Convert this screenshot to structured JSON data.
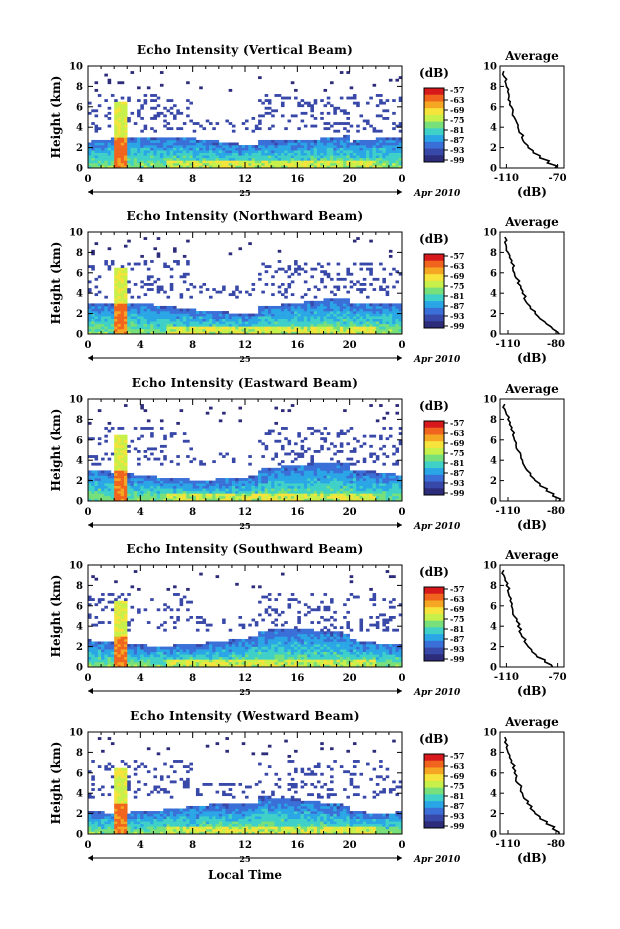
{
  "common": {
    "x_ticks": [
      "0",
      "4",
      "8",
      "12",
      "16",
      "20",
      "0"
    ],
    "y_ticks": [
      "0",
      "2",
      "4",
      "6",
      "8",
      "10"
    ],
    "ylabel": "Height (km)",
    "date_day": "25",
    "date_month_year": "Apr 2010",
    "colorbar_label": "(dB)",
    "colorbar_ticks": [
      "-57",
      "-63",
      "-69",
      "-75",
      "-81",
      "-87",
      "-93",
      "-99"
    ],
    "colorbar_colors": [
      "#d7191c",
      "#f0641e",
      "#f5a623",
      "#f6e33b",
      "#c8f04a",
      "#78e07a",
      "#3fd0c8",
      "#2aa6e6",
      "#3a6fd8",
      "#3848a8",
      "#2c2c7a"
    ],
    "avg_title": "Average",
    "avg_xlabel": "(dB)",
    "xlabel": "Local Time"
  },
  "chart_data": [
    {
      "type": "heatmap",
      "title": "Echo Intensity (Vertical Beam)",
      "x_range": [
        0,
        24
      ],
      "y_range": [
        0,
        10
      ],
      "avg_profile": {
        "ticks": [
          "-110",
          "-70"
        ],
        "xlim": [
          -115,
          -65
        ],
        "height": [
          0,
          0.5,
          1,
          1.5,
          2,
          2.5,
          3,
          3.5,
          4,
          4.5,
          5,
          5.5,
          6,
          6.5,
          7,
          7.5,
          8,
          8.5,
          9,
          9.5
        ],
        "db": [
          -72,
          -78,
          -84,
          -89,
          -93,
          -96,
          -98,
          -100,
          -101,
          -102,
          -104,
          -105,
          -106,
          -107,
          -108,
          -109,
          -110,
          -111,
          -112,
          -112
        ]
      }
    },
    {
      "type": "heatmap",
      "title": "Echo Intensity (Northward Beam)",
      "x_range": [
        0,
        24
      ],
      "y_range": [
        0,
        10
      ],
      "avg_profile": {
        "ticks": [
          "-110",
          "-80"
        ],
        "xlim": [
          -115,
          -75
        ],
        "height": [
          0,
          0.5,
          1,
          1.5,
          2,
          2.5,
          3,
          3.5,
          4,
          4.5,
          5,
          5.5,
          6,
          6.5,
          7,
          7.5,
          8,
          8.5,
          9,
          9.5
        ],
        "db": [
          -78,
          -82,
          -86,
          -90,
          -93,
          -96,
          -98,
          -100,
          -101,
          -102,
          -104,
          -105,
          -106,
          -107,
          -108,
          -109,
          -110,
          -111,
          -112,
          -112
        ]
      }
    },
    {
      "type": "heatmap",
      "title": "Echo Intensity (Eastward Beam)",
      "x_range": [
        0,
        24
      ],
      "y_range": [
        0,
        10
      ],
      "avg_profile": {
        "ticks": [
          "-110",
          "-80"
        ],
        "xlim": [
          -115,
          -75
        ],
        "height": [
          0,
          0.5,
          1,
          1.5,
          2,
          2.5,
          3,
          3.5,
          4,
          4.5,
          5,
          5.5,
          6,
          6.5,
          7,
          7.5,
          8,
          8.5,
          9,
          9.5
        ],
        "db": [
          -78,
          -82,
          -86,
          -90,
          -93,
          -96,
          -98,
          -100,
          -101,
          -102,
          -104,
          -105,
          -106,
          -107,
          -108,
          -109,
          -110,
          -111,
          -112,
          -112
        ]
      }
    },
    {
      "type": "heatmap",
      "title": "Echo Intensity (Southward Beam)",
      "x_range": [
        0,
        24
      ],
      "y_range": [
        0,
        10
      ],
      "avg_profile": {
        "ticks": [
          "-110",
          "-70"
        ],
        "xlim": [
          -115,
          -65
        ],
        "height": [
          0,
          0.5,
          1,
          1.5,
          2,
          2.5,
          3,
          3.5,
          4,
          4.5,
          5,
          5.5,
          6,
          6.5,
          7,
          7.5,
          8,
          8.5,
          9,
          9.5
        ],
        "db": [
          -74,
          -80,
          -86,
          -90,
          -93,
          -96,
          -98,
          -100,
          -101,
          -102,
          -104,
          -105,
          -106,
          -107,
          -108,
          -109,
          -110,
          -111,
          -112,
          -112
        ]
      }
    },
    {
      "type": "heatmap",
      "title": "Echo Intensity (Westward Beam)",
      "x_range": [
        0,
        24
      ],
      "y_range": [
        0,
        10
      ],
      "avg_profile": {
        "ticks": [
          "-110",
          "-80"
        ],
        "xlim": [
          -115,
          -75
        ],
        "height": [
          0,
          0.5,
          1,
          1.5,
          2,
          2.5,
          3,
          3.5,
          4,
          4.5,
          5,
          5.5,
          6,
          6.5,
          7,
          7.5,
          8,
          8.5,
          9,
          9.5
        ],
        "db": [
          -78,
          -82,
          -86,
          -90,
          -93,
          -96,
          -98,
          -100,
          -101,
          -102,
          -104,
          -105,
          -106,
          -107,
          -108,
          -109,
          -110,
          -111,
          -112,
          -112
        ]
      }
    }
  ]
}
